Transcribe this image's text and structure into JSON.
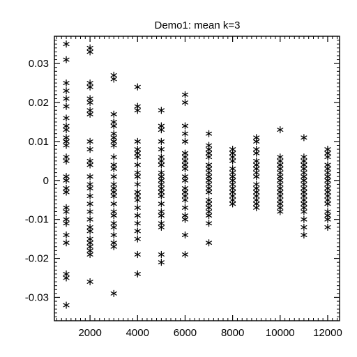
{
  "chart_data": {
    "type": "scatter",
    "title": "Demo1: mean k=3",
    "xlabel": "",
    "ylabel": "",
    "marker": "asterisk",
    "color": "#000000",
    "xlim": [
      500,
      12500
    ],
    "ylim": [
      -0.036,
      0.037
    ],
    "xticks": [
      2000,
      4000,
      6000,
      8000,
      10000,
      12000
    ],
    "xtick_labels": [
      "2000",
      "4000",
      "6000",
      "8000",
      "10000",
      "12000"
    ],
    "yticks": [
      -0.03,
      -0.02,
      -0.01,
      0,
      0.01,
      0.02,
      0.03
    ],
    "ytick_labels": [
      "-0.03",
      "-0.02",
      "-0.01",
      "0",
      "0.01",
      "0.02",
      "0.03"
    ],
    "points": [
      [
        1000,
        0.035
      ],
      [
        1000,
        0.031
      ],
      [
        1000,
        0.025
      ],
      [
        1000,
        0.023
      ],
      [
        1000,
        0.021
      ],
      [
        1000,
        0.019
      ],
      [
        1000,
        0.016
      ],
      [
        1000,
        0.014
      ],
      [
        1000,
        0.013
      ],
      [
        1000,
        0.011
      ],
      [
        1000,
        0.01
      ],
      [
        1000,
        0.009
      ],
      [
        1000,
        0.006
      ],
      [
        1000,
        0.005
      ],
      [
        1000,
        0.001
      ],
      [
        1000,
        0.0
      ],
      [
        1000,
        -0.002
      ],
      [
        1000,
        -0.003
      ],
      [
        1000,
        -0.007
      ],
      [
        1000,
        -0.008
      ],
      [
        1000,
        -0.01
      ],
      [
        1000,
        -0.011
      ],
      [
        1000,
        -0.014
      ],
      [
        1000,
        -0.016
      ],
      [
        1000,
        -0.024
      ],
      [
        1000,
        -0.025
      ],
      [
        1000,
        -0.032
      ],
      [
        2000,
        0.034
      ],
      [
        2000,
        0.033
      ],
      [
        2000,
        0.025
      ],
      [
        2000,
        0.024
      ],
      [
        2000,
        0.021
      ],
      [
        2000,
        0.02
      ],
      [
        2000,
        0.018
      ],
      [
        2000,
        0.017
      ],
      [
        2000,
        0.01
      ],
      [
        2000,
        0.008
      ],
      [
        2000,
        0.005
      ],
      [
        2000,
        0.004
      ],
      [
        2000,
        0.001
      ],
      [
        2000,
        -0.001
      ],
      [
        2000,
        -0.002
      ],
      [
        2000,
        -0.004
      ],
      [
        2000,
        -0.006
      ],
      [
        2000,
        -0.008
      ],
      [
        2000,
        -0.01
      ],
      [
        2000,
        -0.012
      ],
      [
        2000,
        -0.013
      ],
      [
        2000,
        -0.015
      ],
      [
        2000,
        -0.016
      ],
      [
        2000,
        -0.017
      ],
      [
        2000,
        -0.018
      ],
      [
        2000,
        -0.019
      ],
      [
        2000,
        -0.026
      ],
      [
        3000,
        0.027
      ],
      [
        3000,
        0.026
      ],
      [
        3000,
        0.017
      ],
      [
        3000,
        0.015
      ],
      [
        3000,
        0.014
      ],
      [
        3000,
        0.012
      ],
      [
        3000,
        0.011
      ],
      [
        3000,
        0.01
      ],
      [
        3000,
        0.009
      ],
      [
        3000,
        0.006
      ],
      [
        3000,
        0.004
      ],
      [
        3000,
        0.003
      ],
      [
        3000,
        0.001
      ],
      [
        3000,
        -0.001
      ],
      [
        3000,
        -0.002
      ],
      [
        3000,
        -0.003
      ],
      [
        3000,
        -0.004
      ],
      [
        3000,
        -0.006
      ],
      [
        3000,
        -0.008
      ],
      [
        3000,
        -0.009
      ],
      [
        3000,
        -0.011
      ],
      [
        3000,
        -0.012
      ],
      [
        3000,
        -0.014
      ],
      [
        3000,
        -0.016
      ],
      [
        3000,
        -0.017
      ],
      [
        3000,
        -0.029
      ],
      [
        4000,
        0.024
      ],
      [
        4000,
        0.019
      ],
      [
        4000,
        0.018
      ],
      [
        4000,
        0.01
      ],
      [
        4000,
        0.008
      ],
      [
        4000,
        0.007
      ],
      [
        4000,
        0.006
      ],
      [
        4000,
        0.004
      ],
      [
        4000,
        0.002
      ],
      [
        4000,
        0.001
      ],
      [
        4000,
        -0.001
      ],
      [
        4000,
        -0.003
      ],
      [
        4000,
        -0.004
      ],
      [
        4000,
        -0.005
      ],
      [
        4000,
        -0.007
      ],
      [
        4000,
        -0.009
      ],
      [
        4000,
        -0.011
      ],
      [
        4000,
        -0.013
      ],
      [
        4000,
        -0.015
      ],
      [
        4000,
        -0.019
      ],
      [
        4000,
        -0.024
      ],
      [
        5000,
        0.018
      ],
      [
        5000,
        0.014
      ],
      [
        5000,
        0.013
      ],
      [
        5000,
        0.01
      ],
      [
        5000,
        0.008
      ],
      [
        5000,
        0.006
      ],
      [
        5000,
        0.005
      ],
      [
        5000,
        0.004
      ],
      [
        5000,
        0.002
      ],
      [
        5000,
        0.001
      ],
      [
        5000,
        0.0
      ],
      [
        5000,
        -0.001
      ],
      [
        5000,
        -0.002
      ],
      [
        5000,
        -0.003
      ],
      [
        5000,
        -0.004
      ],
      [
        5000,
        -0.006
      ],
      [
        5000,
        -0.008
      ],
      [
        5000,
        -0.009
      ],
      [
        5000,
        -0.011
      ],
      [
        5000,
        -0.012
      ],
      [
        5000,
        -0.019
      ],
      [
        5000,
        -0.021
      ],
      [
        6000,
        0.022
      ],
      [
        6000,
        0.02
      ],
      [
        6000,
        0.014
      ],
      [
        6000,
        0.012
      ],
      [
        6000,
        0.01
      ],
      [
        6000,
        0.007
      ],
      [
        6000,
        0.006
      ],
      [
        6000,
        0.005
      ],
      [
        6000,
        0.004
      ],
      [
        6000,
        0.003
      ],
      [
        6000,
        0.001
      ],
      [
        6000,
        0.0
      ],
      [
        6000,
        -0.002
      ],
      [
        6000,
        -0.003
      ],
      [
        6000,
        -0.004
      ],
      [
        6000,
        -0.005
      ],
      [
        6000,
        -0.007
      ],
      [
        6000,
        -0.009
      ],
      [
        6000,
        -0.01
      ],
      [
        6000,
        -0.014
      ],
      [
        6000,
        -0.019
      ],
      [
        7000,
        0.012
      ],
      [
        7000,
        0.009
      ],
      [
        7000,
        0.008
      ],
      [
        7000,
        0.007
      ],
      [
        7000,
        0.006
      ],
      [
        7000,
        0.004
      ],
      [
        7000,
        0.003
      ],
      [
        7000,
        0.002
      ],
      [
        7000,
        0.001
      ],
      [
        7000,
        0.0
      ],
      [
        7000,
        -0.001
      ],
      [
        7000,
        -0.002
      ],
      [
        7000,
        -0.003
      ],
      [
        7000,
        -0.005
      ],
      [
        7000,
        -0.006
      ],
      [
        7000,
        -0.007
      ],
      [
        7000,
        -0.008
      ],
      [
        7000,
        -0.009
      ],
      [
        7000,
        -0.011
      ],
      [
        7000,
        -0.016
      ],
      [
        8000,
        0.008
      ],
      [
        8000,
        0.007
      ],
      [
        8000,
        0.006
      ],
      [
        8000,
        0.005
      ],
      [
        8000,
        0.003
      ],
      [
        8000,
        0.002
      ],
      [
        8000,
        0.001
      ],
      [
        8000,
        0.0
      ],
      [
        8000,
        -0.001
      ],
      [
        8000,
        -0.002
      ],
      [
        8000,
        -0.003
      ],
      [
        8000,
        -0.004
      ],
      [
        8000,
        -0.005
      ],
      [
        8000,
        -0.006
      ],
      [
        9000,
        0.011
      ],
      [
        9000,
        0.01
      ],
      [
        9000,
        0.008
      ],
      [
        9000,
        0.007
      ],
      [
        9000,
        0.005
      ],
      [
        9000,
        0.004
      ],
      [
        9000,
        0.003
      ],
      [
        9000,
        0.002
      ],
      [
        9000,
        0.001
      ],
      [
        9000,
        -0.001
      ],
      [
        9000,
        -0.002
      ],
      [
        9000,
        -0.003
      ],
      [
        9000,
        -0.004
      ],
      [
        9000,
        -0.005
      ],
      [
        9000,
        -0.006
      ],
      [
        9000,
        -0.007
      ],
      [
        10000,
        0.013
      ],
      [
        10000,
        0.006
      ],
      [
        10000,
        0.005
      ],
      [
        10000,
        0.004
      ],
      [
        10000,
        0.003
      ],
      [
        10000,
        0.002
      ],
      [
        10000,
        0.001
      ],
      [
        10000,
        0.0
      ],
      [
        10000,
        -0.001
      ],
      [
        10000,
        -0.002
      ],
      [
        10000,
        -0.003
      ],
      [
        10000,
        -0.004
      ],
      [
        10000,
        -0.005
      ],
      [
        10000,
        -0.006
      ],
      [
        10000,
        -0.007
      ],
      [
        10000,
        -0.008
      ],
      [
        11000,
        0.011
      ],
      [
        11000,
        0.006
      ],
      [
        11000,
        0.005
      ],
      [
        11000,
        0.004
      ],
      [
        11000,
        0.003
      ],
      [
        11000,
        0.002
      ],
      [
        11000,
        0.001
      ],
      [
        11000,
        0.0
      ],
      [
        11000,
        -0.001
      ],
      [
        11000,
        -0.002
      ],
      [
        11000,
        -0.003
      ],
      [
        11000,
        -0.004
      ],
      [
        11000,
        -0.005
      ],
      [
        11000,
        -0.006
      ],
      [
        11000,
        -0.007
      ],
      [
        11000,
        -0.008
      ],
      [
        11000,
        -0.01
      ],
      [
        11000,
        -0.012
      ],
      [
        11000,
        -0.014
      ],
      [
        12000,
        0.008
      ],
      [
        12000,
        0.007
      ],
      [
        12000,
        0.006
      ],
      [
        12000,
        0.004
      ],
      [
        12000,
        0.003
      ],
      [
        12000,
        0.002
      ],
      [
        12000,
        0.001
      ],
      [
        12000,
        0.0
      ],
      [
        12000,
        -0.001
      ],
      [
        12000,
        -0.002
      ],
      [
        12000,
        -0.003
      ],
      [
        12000,
        -0.004
      ],
      [
        12000,
        -0.005
      ],
      [
        12000,
        -0.006
      ],
      [
        12000,
        -0.008
      ],
      [
        12000,
        -0.009
      ],
      [
        12000,
        -0.01
      ],
      [
        12000,
        -0.012
      ]
    ]
  }
}
